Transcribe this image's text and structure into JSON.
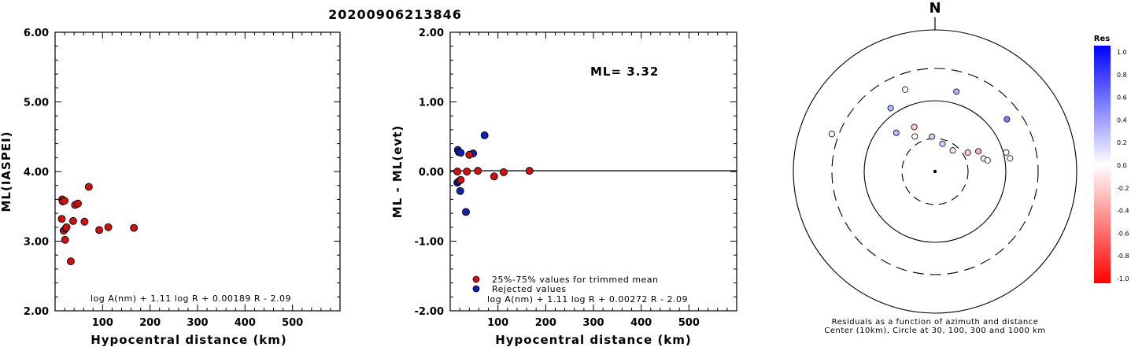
{
  "title": "20200906213846",
  "charts": [
    {
      "type": "scatter",
      "ylabel": "ML(IASPEI)",
      "xlabel": "Hypocentral distance (km)",
      "xlim": [
        0,
        600
      ],
      "ylim": [
        2.0,
        6.0
      ],
      "xticks": [
        "100",
        "200",
        "300",
        "400",
        "500"
      ],
      "yticks": [
        "2.00",
        "3.00",
        "4.00",
        "5.00",
        "6.00"
      ],
      "formula": "log A(nm) + 1.11 log R + 0.00189 R - 2.09",
      "points": [
        {
          "x": 15,
          "y": 3.6
        },
        {
          "x": 16,
          "y": 3.57
        },
        {
          "x": 20,
          "y": 3.58
        },
        {
          "x": 14,
          "y": 3.32
        },
        {
          "x": 18,
          "y": 3.15
        },
        {
          "x": 22,
          "y": 3.18
        },
        {
          "x": 24,
          "y": 3.2
        },
        {
          "x": 21,
          "y": 3.02
        },
        {
          "x": 33,
          "y": 2.71
        },
        {
          "x": 38,
          "y": 3.29
        },
        {
          "x": 42,
          "y": 3.52
        },
        {
          "x": 48,
          "y": 3.54
        },
        {
          "x": 62,
          "y": 3.28
        },
        {
          "x": 71,
          "y": 3.78
        },
        {
          "x": 93,
          "y": 3.16
        },
        {
          "x": 112,
          "y": 3.2
        },
        {
          "x": 166,
          "y": 3.19
        }
      ]
    },
    {
      "type": "scatter",
      "ylabel": "ML - ML(evt)",
      "xlabel": "Hypocentral distance (km)",
      "xlim": [
        0,
        600
      ],
      "ylim": [
        -2.0,
        2.0
      ],
      "xticks": [
        "100",
        "200",
        "300",
        "400",
        "500"
      ],
      "yticks": [
        "-2.00",
        "-1.00",
        "0.00",
        "1.00",
        "2.00"
      ],
      "annotation": "ML= 3.32",
      "formula": "log A(nm) + 1.11 log R + 0.00272 R - 2.09",
      "legend": [
        {
          "label": "25%-75% values for trimmed mean",
          "color": "#d01010"
        },
        {
          "label": "Rejected values",
          "color": "#1020b0"
        }
      ],
      "series": [
        {
          "name": "25%-75% values for trimmed mean",
          "points": [
            {
              "x": 15,
              "y": 0.0
            },
            {
              "x": 22,
              "y": -0.12
            },
            {
              "x": 35,
              "y": 0.0
            },
            {
              "x": 40,
              "y": 0.24
            },
            {
              "x": 58,
              "y": 0.01
            },
            {
              "x": 92,
              "y": -0.07
            },
            {
              "x": 112,
              "y": -0.01
            },
            {
              "x": 166,
              "y": 0.01
            }
          ]
        },
        {
          "name": "Rejected values",
          "points": [
            {
              "x": 16,
              "y": 0.31
            },
            {
              "x": 18,
              "y": 0.28
            },
            {
              "x": 22,
              "y": 0.27
            },
            {
              "x": 15,
              "y": -0.16
            },
            {
              "x": 18,
              "y": -0.14
            },
            {
              "x": 21,
              "y": -0.28
            },
            {
              "x": 33,
              "y": -0.58
            },
            {
              "x": 48,
              "y": 0.26
            },
            {
              "x": 72,
              "y": 0.52
            }
          ]
        }
      ]
    }
  ],
  "polar": {
    "north_label": "N",
    "caption_line1": "Residuals as a function of azimuth and distance",
    "caption_line2": "Center (10km), Circle at 30, 100, 300 and 1000 km",
    "colorbar": {
      "title": "Res",
      "labels": [
        "1.0",
        "0.8",
        "0.6",
        "0.4",
        "0.2",
        "0.0",
        "-0.2",
        "-0.4",
        "-0.6",
        "-0.8",
        "-1.0"
      ],
      "top_color": "#0000ff",
      "mid_color": "#ffffff",
      "bottom_color": "#ff0000"
    },
    "stations": [
      {
        "az": 290,
        "dist": 370,
        "res": 0.0
      },
      {
        "az": 340,
        "dist": 175,
        "res": 0.0
      },
      {
        "az": 15,
        "dist": 150,
        "res": 0.3
      },
      {
        "az": 54,
        "dist": 185,
        "res": 0.5
      },
      {
        "az": 325,
        "dist": 125,
        "res": 0.3
      },
      {
        "az": 335,
        "dist": 50,
        "res": -0.2
      },
      {
        "az": 315,
        "dist": 60,
        "res": 0.3
      },
      {
        "az": 330,
        "dist": 38,
        "res": -0.05
      },
      {
        "az": 355,
        "dist": 32,
        "res": 0.2
      },
      {
        "az": 15,
        "dist": 26,
        "res": 0.2
      },
      {
        "az": 40,
        "dist": 25,
        "res": -0.1
      },
      {
        "az": 60,
        "dist": 35,
        "res": -0.2
      },
      {
        "az": 65,
        "dist": 48,
        "res": -0.3
      },
      {
        "az": 75,
        "dist": 52,
        "res": -0.1
      },
      {
        "az": 78,
        "dist": 58,
        "res": 0.0
      },
      {
        "az": 80,
        "dist": 120,
        "res": 0.0
      },
      {
        "az": 75,
        "dist": 110,
        "res": 0.0
      }
    ]
  }
}
